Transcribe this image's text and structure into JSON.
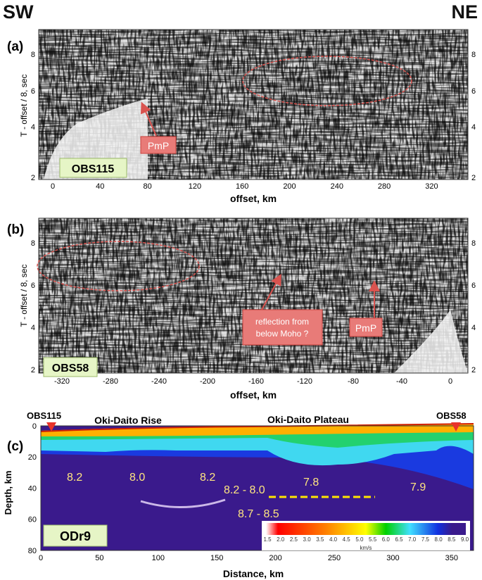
{
  "header": {
    "left": "SW",
    "right": "NE"
  },
  "panel_a": {
    "label": "(a)",
    "ylabel": "T - offset / 8, sec",
    "xlabel": "offset, km",
    "yticks": [
      "8",
      "6",
      "4",
      "2"
    ],
    "xticks": [
      "0",
      "40",
      "80",
      "120",
      "160",
      "200",
      "240",
      "280",
      "320"
    ],
    "station": "OBS115",
    "annotations": [
      "PmP"
    ]
  },
  "panel_b": {
    "label": "(b)",
    "ylabel": "T - offset / 8, sec",
    "xlabel": "offset, km",
    "yticks": [
      "8",
      "6",
      "4",
      "2"
    ],
    "xticks": [
      "-320",
      "-280",
      "-240",
      "-200",
      "-160",
      "-120",
      "-80",
      "-40",
      "0"
    ],
    "station": "OBS58",
    "annotations": [
      "reflection from below Moho ?",
      "PmP"
    ]
  },
  "panel_c": {
    "label": "(c)",
    "ylabel": "Depth, km",
    "xlabel": "Distance, km",
    "yticks": [
      "0",
      "20",
      "40",
      "60",
      "80"
    ],
    "xticks": [
      "0",
      "50",
      "100",
      "150",
      "200",
      "250",
      "300",
      "350"
    ],
    "stations": [
      "OBS115",
      "OBS58"
    ],
    "regions": [
      "Oki-Daito Rise",
      "Oki-Daito Plateau"
    ],
    "velocity_labels": [
      "8.2",
      "8.0",
      "8.2",
      "7.8",
      "7.9",
      "8.2 - 8.0",
      "8.7 - 8.5"
    ],
    "profile": "ODr9",
    "colorbar": {
      "ticks": [
        "1.5",
        "2.0",
        "2.5",
        "3.0",
        "3.5",
        "4.0",
        "4.5",
        "5.0",
        "5.5",
        "6.0",
        "6.5",
        "7.0",
        "7.5",
        "8.0",
        "8.5",
        "9.0"
      ],
      "unit": "km/s"
    },
    "colors": {
      "station_marker": "#e8332a",
      "dashed_line": "#ffe600",
      "label_text": "#ffe680",
      "mantle": "#3a1a8c"
    }
  }
}
